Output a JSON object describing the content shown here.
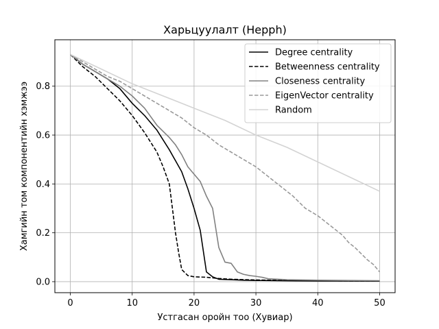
{
  "chart_data": {
    "type": "line",
    "title": "Харьцуулалт (Hepph)",
    "xlabel": "Устгасан оройн тоо (Хувиар)",
    "ylabel": "Хамгийн том компонентийн хэмжээ",
    "xlim": [
      -2.5,
      52.5
    ],
    "ylim": [
      -0.045,
      0.99
    ],
    "xticks": [
      0,
      10,
      20,
      30,
      40,
      50
    ],
    "yticks": [
      0.0,
      0.2,
      0.4,
      0.6,
      0.8
    ],
    "grid": true,
    "legend_position": "top-right",
    "series": [
      {
        "name": "Degree centrality",
        "color": "#000000",
        "dash": "solid",
        "x": [
          0,
          2,
          4,
          6,
          8,
          10,
          12,
          14,
          16,
          18,
          19,
          20,
          21,
          22,
          23,
          24,
          26,
          28,
          30,
          35,
          40,
          45,
          50
        ],
        "y": [
          0.93,
          0.89,
          0.86,
          0.83,
          0.79,
          0.73,
          0.68,
          0.62,
          0.54,
          0.45,
          0.38,
          0.3,
          0.21,
          0.04,
          0.02,
          0.01,
          0.008,
          0.006,
          0.005,
          0.004,
          0.003,
          0.003,
          0.002
        ]
      },
      {
        "name": "Betweenness centrality",
        "color": "#000000",
        "dash": "dashed",
        "x": [
          0,
          2,
          4,
          6,
          8,
          10,
          12,
          14,
          15,
          16,
          16.5,
          17,
          17.5,
          18,
          19,
          20,
          22,
          24,
          26,
          30,
          35,
          40,
          45,
          50
        ],
        "y": [
          0.93,
          0.88,
          0.84,
          0.79,
          0.74,
          0.68,
          0.61,
          0.53,
          0.47,
          0.4,
          0.3,
          0.2,
          0.12,
          0.05,
          0.025,
          0.02,
          0.018,
          0.013,
          0.01,
          0.007,
          0.005,
          0.004,
          0.003,
          0.002
        ]
      },
      {
        "name": "Closeness centrality",
        "color": "#808080",
        "dash": "solid",
        "x": [
          0,
          2,
          4,
          6,
          8,
          10,
          12,
          14,
          16,
          17,
          18,
          19,
          20,
          21,
          22,
          23,
          24,
          25,
          26,
          27,
          28,
          29,
          30,
          31,
          32,
          35,
          40,
          45,
          50
        ],
        "y": [
          0.93,
          0.89,
          0.86,
          0.83,
          0.8,
          0.76,
          0.71,
          0.64,
          0.59,
          0.56,
          0.52,
          0.47,
          0.44,
          0.41,
          0.35,
          0.3,
          0.14,
          0.08,
          0.075,
          0.04,
          0.03,
          0.025,
          0.022,
          0.018,
          0.012,
          0.008,
          0.006,
          0.005,
          0.004
        ]
      },
      {
        "name": "EigenVector centrality",
        "color": "#999999",
        "dash": "dashed",
        "x": [
          0,
          2,
          4,
          6,
          8,
          10,
          12,
          14,
          16,
          18,
          20,
          22,
          24,
          26,
          28,
          30,
          32,
          34,
          36,
          38,
          40,
          42,
          44,
          45,
          46,
          48,
          49,
          50
        ],
        "y": [
          0.93,
          0.9,
          0.87,
          0.84,
          0.82,
          0.79,
          0.76,
          0.73,
          0.7,
          0.67,
          0.63,
          0.6,
          0.56,
          0.53,
          0.5,
          0.47,
          0.43,
          0.39,
          0.35,
          0.3,
          0.27,
          0.23,
          0.19,
          0.16,
          0.14,
          0.09,
          0.07,
          0.04
        ]
      },
      {
        "name": "Random",
        "color": "#d3d3d3",
        "dash": "solid",
        "x": [
          0,
          5,
          10,
          15,
          20,
          25,
          30,
          35,
          40,
          45,
          50
        ],
        "y": [
          0.93,
          0.87,
          0.81,
          0.76,
          0.71,
          0.66,
          0.6,
          0.55,
          0.49,
          0.43,
          0.37
        ]
      }
    ]
  }
}
